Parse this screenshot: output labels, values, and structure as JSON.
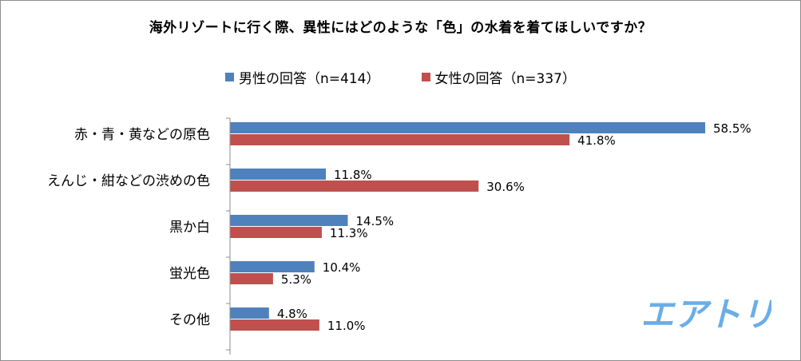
{
  "chart_data": {
    "type": "bar",
    "orientation": "horizontal",
    "title": "海外リゾートに行く際、異性にはどのような「色」の水着を着てほしいですか？",
    "categories": [
      "赤・青・黄などの原色",
      "えんじ・紺などの渋めの色",
      "黒か白",
      "蛍光色",
      "その他"
    ],
    "series": [
      {
        "name": "男性の回答（n=414）",
        "color": "#4f81bd",
        "values": [
          58.5,
          11.8,
          14.5,
          10.4,
          4.8
        ],
        "labels": [
          "58.5%",
          "11.8%",
          "14.5%",
          "10.4%",
          "4.8%"
        ]
      },
      {
        "name": "女性の回答（n=337）",
        "color": "#c0504d",
        "values": [
          41.8,
          30.6,
          11.3,
          5.3,
          11.0
        ],
        "labels": [
          "41.8%",
          "30.6%",
          "11.3%",
          "5.3%",
          "11.0%"
        ]
      }
    ],
    "xlim": [
      0,
      70
    ],
    "legend_position": "top",
    "grid": false
  },
  "brand": {
    "logo_text": "エアトリ",
    "color": "#6aaee6"
  }
}
